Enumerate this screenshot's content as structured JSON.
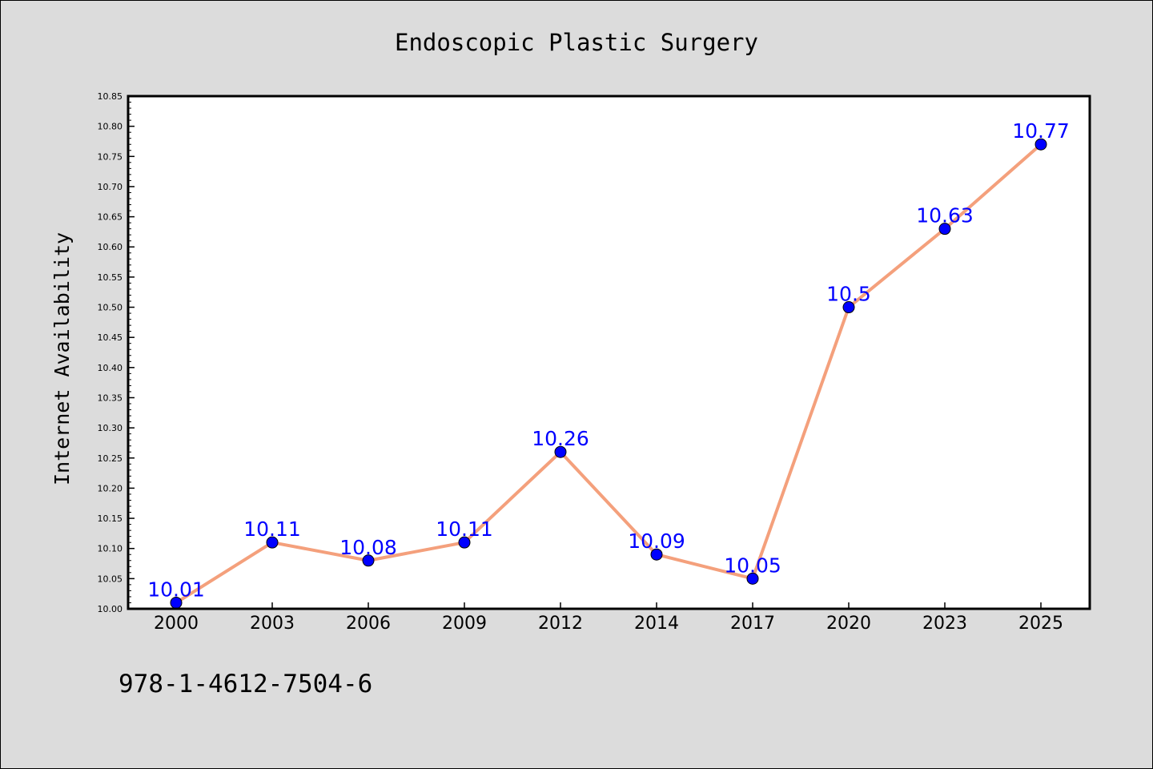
{
  "footer": {
    "isbn": "978-1-4612-7504-6"
  },
  "colors": {
    "background": "#dcdcdc",
    "plot_area": "#ffffff",
    "line": "#f4a07c",
    "marker": "#0000ff",
    "data_label": "#0000ff"
  },
  "chart_data": {
    "type": "line",
    "title": "Endoscopic Plastic Surgery",
    "xlabel": "",
    "ylabel": "Internet Availability",
    "categories": [
      "2000",
      "2003",
      "2006",
      "2009",
      "2012",
      "2014",
      "2017",
      "2020",
      "2023",
      "2025"
    ],
    "series": [
      {
        "values": [
          10.01,
          10.11,
          10.08,
          10.11,
          10.26,
          10.09,
          10.05,
          10.5,
          10.63,
          10.77
        ]
      }
    ],
    "data_labels": [
      "10.01",
      "10.11",
      "10.08",
      "10.11",
      "10.26",
      "10.09",
      "10.05",
      "10.5",
      "10.63",
      "10.77"
    ],
    "ylim": [
      10.0,
      10.85
    ],
    "yticks": [
      "10.00",
      "10.05",
      "10.10",
      "10.15",
      "10.20",
      "10.25",
      "10.30",
      "10.35",
      "10.40",
      "10.45",
      "10.50",
      "10.55",
      "10.60",
      "10.65",
      "10.70",
      "10.75",
      "10.80",
      "10.85"
    ],
    "grid": false,
    "legend": "none",
    "markers": "filled circles"
  }
}
